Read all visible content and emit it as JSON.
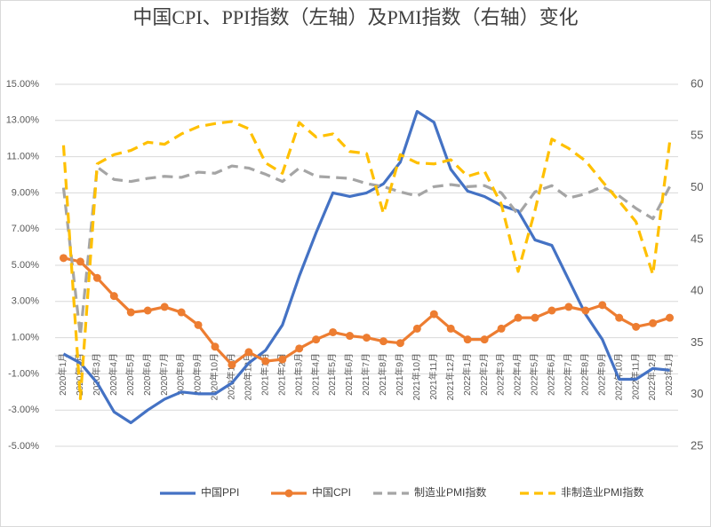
{
  "chart_data": {
    "type": "line",
    "title": "中国CPI、PPI指数（左轴）及PMI指数（右轴）变化",
    "categories": [
      "2020年1月",
      "2020年2月",
      "2020年3月",
      "2020年4月",
      "2020年5月",
      "2020年6月",
      "2020年7月",
      "2020年8月",
      "2020年9月",
      "2020年10月",
      "2020年11月",
      "2020年12月",
      "2021年1月",
      "2021年2月",
      "2021年3月",
      "2021年4月",
      "2021年5月",
      "2021年6月",
      "2021年7月",
      "2021年8月",
      "2021年9月",
      "2021年10月",
      "2021年11月",
      "2021年12月",
      "2022年1月",
      "2022年2月",
      "2022年3月",
      "2022年4月",
      "2022年5月",
      "2022年6月",
      "2022年7月",
      "2022年8月",
      "2022年9月",
      "2022年10月",
      "2022年11月",
      "2022年12月",
      "2023年1月"
    ],
    "series": [
      {
        "name": "中国PPI",
        "color": "#4472c4",
        "values": [
          0.1,
          -0.4,
          -1.5,
          -3.1,
          -3.7,
          -3.0,
          -2.4,
          -2.0,
          -2.1,
          -2.1,
          -1.5,
          -0.4,
          0.3,
          1.7,
          4.4,
          6.8,
          9.0,
          8.8,
          9.0,
          9.5,
          10.7,
          13.5,
          12.9,
          10.3,
          9.1,
          8.8,
          8.3,
          8.0,
          6.4,
          6.1,
          4.2,
          2.3,
          0.9,
          -1.3,
          -1.3,
          -0.7,
          -0.8
        ]
      },
      {
        "name": "中国CPI",
        "color": "#ed7d31",
        "markers": true,
        "values": [
          5.4,
          5.2,
          4.3,
          3.3,
          2.4,
          2.5,
          2.7,
          2.4,
          1.7,
          0.5,
          -0.5,
          0.2,
          -0.3,
          -0.2,
          0.4,
          0.9,
          1.3,
          1.1,
          1.0,
          0.8,
          0.7,
          1.5,
          2.3,
          1.5,
          0.9,
          0.9,
          1.5,
          2.1,
          2.1,
          2.5,
          2.7,
          2.5,
          2.8,
          2.1,
          1.6,
          1.8,
          2.1
        ]
      },
      {
        "name": "制造业PMI指数",
        "color": "#a5a5a5",
        "dashed": true,
        "axis": "y2",
        "values": [
          50.0,
          35.7,
          52.0,
          50.8,
          50.6,
          50.9,
          51.1,
          51.0,
          51.5,
          51.4,
          52.1,
          51.9,
          51.3,
          50.6,
          51.9,
          51.1,
          51.0,
          50.9,
          50.4,
          50.1,
          49.6,
          49.2,
          50.1,
          50.3,
          50.1,
          50.2,
          49.5,
          47.4,
          49.6,
          50.2,
          49.0,
          49.4,
          50.1,
          49.2,
          48.0,
          47.0,
          50.1
        ]
      },
      {
        "name": "非制造业PMI指数",
        "color": "#ffc000",
        "dashed": true,
        "axis": "y2",
        "values": [
          54.1,
          29.6,
          52.3,
          53.2,
          53.6,
          54.4,
          54.2,
          55.2,
          55.9,
          56.2,
          56.4,
          55.7,
          52.4,
          51.4,
          56.3,
          54.9,
          55.2,
          53.5,
          53.3,
          47.5,
          53.2,
          52.4,
          52.3,
          52.7,
          51.1,
          51.6,
          48.4,
          41.9,
          47.8,
          54.7,
          53.8,
          52.6,
          50.6,
          48.7,
          46.7,
          41.6,
          54.4
        ]
      }
    ],
    "ylim": [
      -5,
      15
    ],
    "yticks": [
      {
        "value": -5,
        "label": "-5.00%"
      },
      {
        "value": -3,
        "label": "-3.00%"
      },
      {
        "value": -1,
        "label": "-1.00%"
      },
      {
        "value": 1,
        "label": "1.00%"
      },
      {
        "value": 3,
        "label": "3.00%"
      },
      {
        "value": 5,
        "label": "5.00%"
      },
      {
        "value": 7,
        "label": "7.00%"
      },
      {
        "value": 9,
        "label": "9.00%"
      },
      {
        "value": 11,
        "label": "11.00%"
      },
      {
        "value": 13,
        "label": "13.00%"
      },
      {
        "value": 15,
        "label": "15.00%"
      }
    ],
    "y2lim": [
      25,
      60
    ],
    "y2ticks": [
      25,
      30,
      35,
      40,
      45,
      50,
      55,
      60
    ],
    "grid": true
  }
}
